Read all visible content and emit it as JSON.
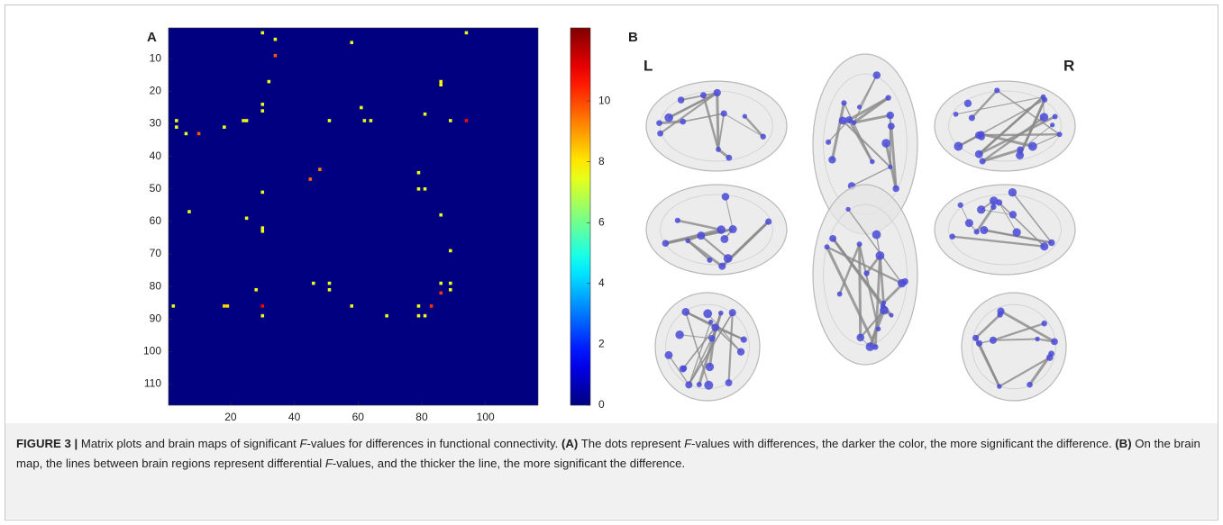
{
  "chart_data": {
    "type": "heatmap",
    "colormap": "jet",
    "xlim": [
      0.5,
      116.5
    ],
    "ylim": [
      0.5,
      116.5
    ],
    "xticks": [
      20,
      40,
      60,
      80,
      100
    ],
    "yticks": [
      10,
      20,
      30,
      40,
      50,
      60,
      70,
      80,
      90,
      100,
      110
    ],
    "cells": [
      [
        2,
        30,
        7.5
      ],
      [
        4,
        34,
        7.5
      ],
      [
        9,
        34,
        9.8
      ],
      [
        5,
        58,
        7.5
      ],
      [
        17,
        32,
        7.5
      ],
      [
        2,
        94,
        7.5
      ],
      [
        24,
        30,
        7.5
      ],
      [
        26,
        30,
        7.5
      ],
      [
        29,
        24,
        7.5
      ],
      [
        29,
        25,
        7.5
      ],
      [
        29,
        3,
        7.5
      ],
      [
        31,
        3,
        7.5
      ],
      [
        33,
        6,
        7.5
      ],
      [
        33,
        10,
        9.8
      ],
      [
        31,
        18,
        7.5
      ],
      [
        29,
        51,
        7.5
      ],
      [
        25,
        61,
        7.5
      ],
      [
        29,
        62,
        7.5
      ],
      [
        29,
        64,
        7.5
      ],
      [
        27,
        81,
        7.5
      ],
      [
        29,
        94,
        10.8
      ],
      [
        29,
        89,
        7.5
      ],
      [
        44,
        48,
        9.2
      ],
      [
        47,
        45,
        9.6
      ],
      [
        45,
        79,
        7.5
      ],
      [
        50,
        79,
        7.5
      ],
      [
        50,
        81,
        7.5
      ],
      [
        51,
        30,
        7.5
      ],
      [
        57,
        7,
        7.5
      ],
      [
        58,
        86,
        7.5
      ],
      [
        59,
        25,
        7.5
      ],
      [
        62,
        30,
        7.5
      ],
      [
        63,
        30,
        7.5
      ],
      [
        69,
        89,
        7.5
      ],
      [
        79,
        46,
        7.5
      ],
      [
        79,
        51,
        7.5
      ],
      [
        81,
        51,
        7.5
      ],
      [
        81,
        28,
        7.5
      ],
      [
        86,
        2,
        7.5
      ],
      [
        86,
        18,
        8.2
      ],
      [
        86,
        19,
        8.2
      ],
      [
        86,
        30,
        10.8
      ],
      [
        89,
        30,
        7.5
      ],
      [
        86,
        58,
        7.5
      ],
      [
        89,
        69,
        7.5
      ],
      [
        86,
        79,
        7.5
      ],
      [
        89,
        79,
        7.5
      ],
      [
        89,
        81,
        7.5
      ],
      [
        86,
        83,
        10.2
      ],
      [
        79,
        86,
        7.5
      ],
      [
        82,
        86,
        10.2
      ],
      [
        79,
        89,
        7.5
      ],
      [
        81,
        89,
        7.5
      ],
      [
        17,
        86,
        7.8
      ],
      [
        18,
        86,
        7.8
      ]
    ],
    "colorbar": {
      "clim": [
        0,
        12.4
      ],
      "ticks": [
        0,
        2,
        4,
        6,
        8,
        10
      ]
    }
  },
  "panels": {
    "a": "A",
    "b": "B",
    "left": "L",
    "right": "R"
  },
  "caption": [
    "FIGURE 3 |",
    " Matrix plots and brain maps of significant ",
    "F",
    "-values for differences in functional connectivity. ",
    "(A)",
    " The dots represent ",
    "F",
    "-values with differences, the darker the color, the more significant the difference. ",
    "(B)",
    " On the brain map, the lines between brain regions represent differential ",
    "F",
    "-values, and the thicker the line, the more significant the difference."
  ]
}
